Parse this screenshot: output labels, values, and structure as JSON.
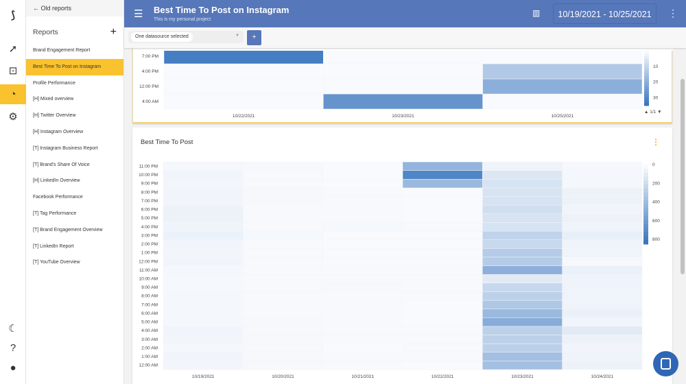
{
  "sidebar": {
    "back": "Old reports",
    "heading": "Reports",
    "items": [
      "Brand Engagement Report",
      "Best Time To Post on Instagram",
      "Profile Performance",
      "[H] Mixed overview",
      "[H] Twitter Overview",
      "[H] Instagram Overview",
      "[T] Instagram Business Report",
      "[T] Brand's Share Of Voice",
      "[H] LinkedIn Overview",
      "Facebook Performance",
      "[T] Tag Performance",
      "[T] Brand Engagement Overview",
      "[T] LinkedIn Report",
      "[T] YouTube Overview"
    ],
    "selected": 1
  },
  "header": {
    "title": "Best Time To Post on Instagram",
    "subtitle": "This is my personal project",
    "date_range": "10/19/2021 - 10/25/2021"
  },
  "toolbar": {
    "datasource": "One datasource selected",
    "add": "+"
  },
  "colors": {
    "header": "#5677b9",
    "accent": "#f9c22e",
    "scale_low": "#f8fafd",
    "scale_high": "#3a76bf"
  },
  "chart_data": [
    {
      "type": "heatmap",
      "title": "",
      "x": [
        "10/22/2021",
        "10/23/2021",
        "10/25/2021"
      ],
      "y": [
        "4:00 AM",
        "12:00 PM",
        "4:00 PM",
        "7:00 PM"
      ],
      "values": [
        [
          0,
          27,
          0
        ],
        [
          0,
          0,
          20
        ],
        [
          0,
          0,
          13
        ],
        [
          33,
          0,
          0
        ]
      ],
      "colorbar_ticks": [
        10,
        20,
        30
      ],
      "colorbar_range": [
        0,
        35
      ],
      "legend_page": "1/1"
    },
    {
      "type": "heatmap",
      "title": "Best Time To Post",
      "x": [
        "10/19/2021",
        "10/20/2021",
        "10/21/2021",
        "10/22/2021",
        "10/23/2021",
        "10/24/2021"
      ],
      "y": [
        "12:00 AM",
        "1:00 AM",
        "2:00 AM",
        "3:00 AM",
        "4:00 AM",
        "5:00 AM",
        "6:00 AM",
        "7:00 AM",
        "8:00 AM",
        "9:00 AM",
        "10:00 AM",
        "11:00 AM",
        "12:00 PM",
        "1:00 PM",
        "2:00 PM",
        "3:00 PM",
        "4:00 PM",
        "5:00 PM",
        "6:00 PM",
        "7:00 PM",
        "8:00 PM",
        "9:00 PM",
        "10:00 PM",
        "11:00 PM"
      ],
      "values": [
        [
          25,
          10,
          5,
          0,
          380,
          50
        ],
        [
          30,
          10,
          5,
          5,
          380,
          40
        ],
        [
          20,
          10,
          0,
          5,
          270,
          30
        ],
        [
          25,
          10,
          5,
          5,
          270,
          50
        ],
        [
          30,
          10,
          5,
          5,
          270,
          100
        ],
        [
          20,
          10,
          5,
          0,
          500,
          30
        ],
        [
          20,
          5,
          5,
          0,
          420,
          60
        ],
        [
          20,
          5,
          5,
          0,
          330,
          40
        ],
        [
          20,
          5,
          5,
          5,
          270,
          40
        ],
        [
          15,
          5,
          10,
          5,
          220,
          40
        ],
        [
          15,
          5,
          5,
          5,
          100,
          40
        ],
        [
          20,
          5,
          5,
          5,
          480,
          60
        ],
        [
          30,
          5,
          0,
          0,
          300,
          10
        ],
        [
          25,
          5,
          0,
          0,
          300,
          40
        ],
        [
          30,
          5,
          0,
          0,
          220,
          40
        ],
        [
          60,
          15,
          0,
          0,
          250,
          70
        ],
        [
          40,
          5,
          15,
          5,
          150,
          40
        ],
        [
          50,
          5,
          5,
          0,
          150,
          50
        ],
        [
          50,
          5,
          5,
          0,
          180,
          30
        ],
        [
          30,
          10,
          5,
          0,
          150,
          50
        ],
        [
          30,
          10,
          5,
          0,
          150,
          50
        ],
        [
          25,
          5,
          0,
          420,
          150,
          20
        ],
        [
          30,
          5,
          0,
          750,
          120,
          20
        ],
        [
          20,
          10,
          0,
          450,
          40,
          15
        ]
      ],
      "colorbar_ticks": [
        0,
        200,
        400,
        600,
        800
      ],
      "colorbar_range": [
        0,
        850
      ]
    }
  ]
}
